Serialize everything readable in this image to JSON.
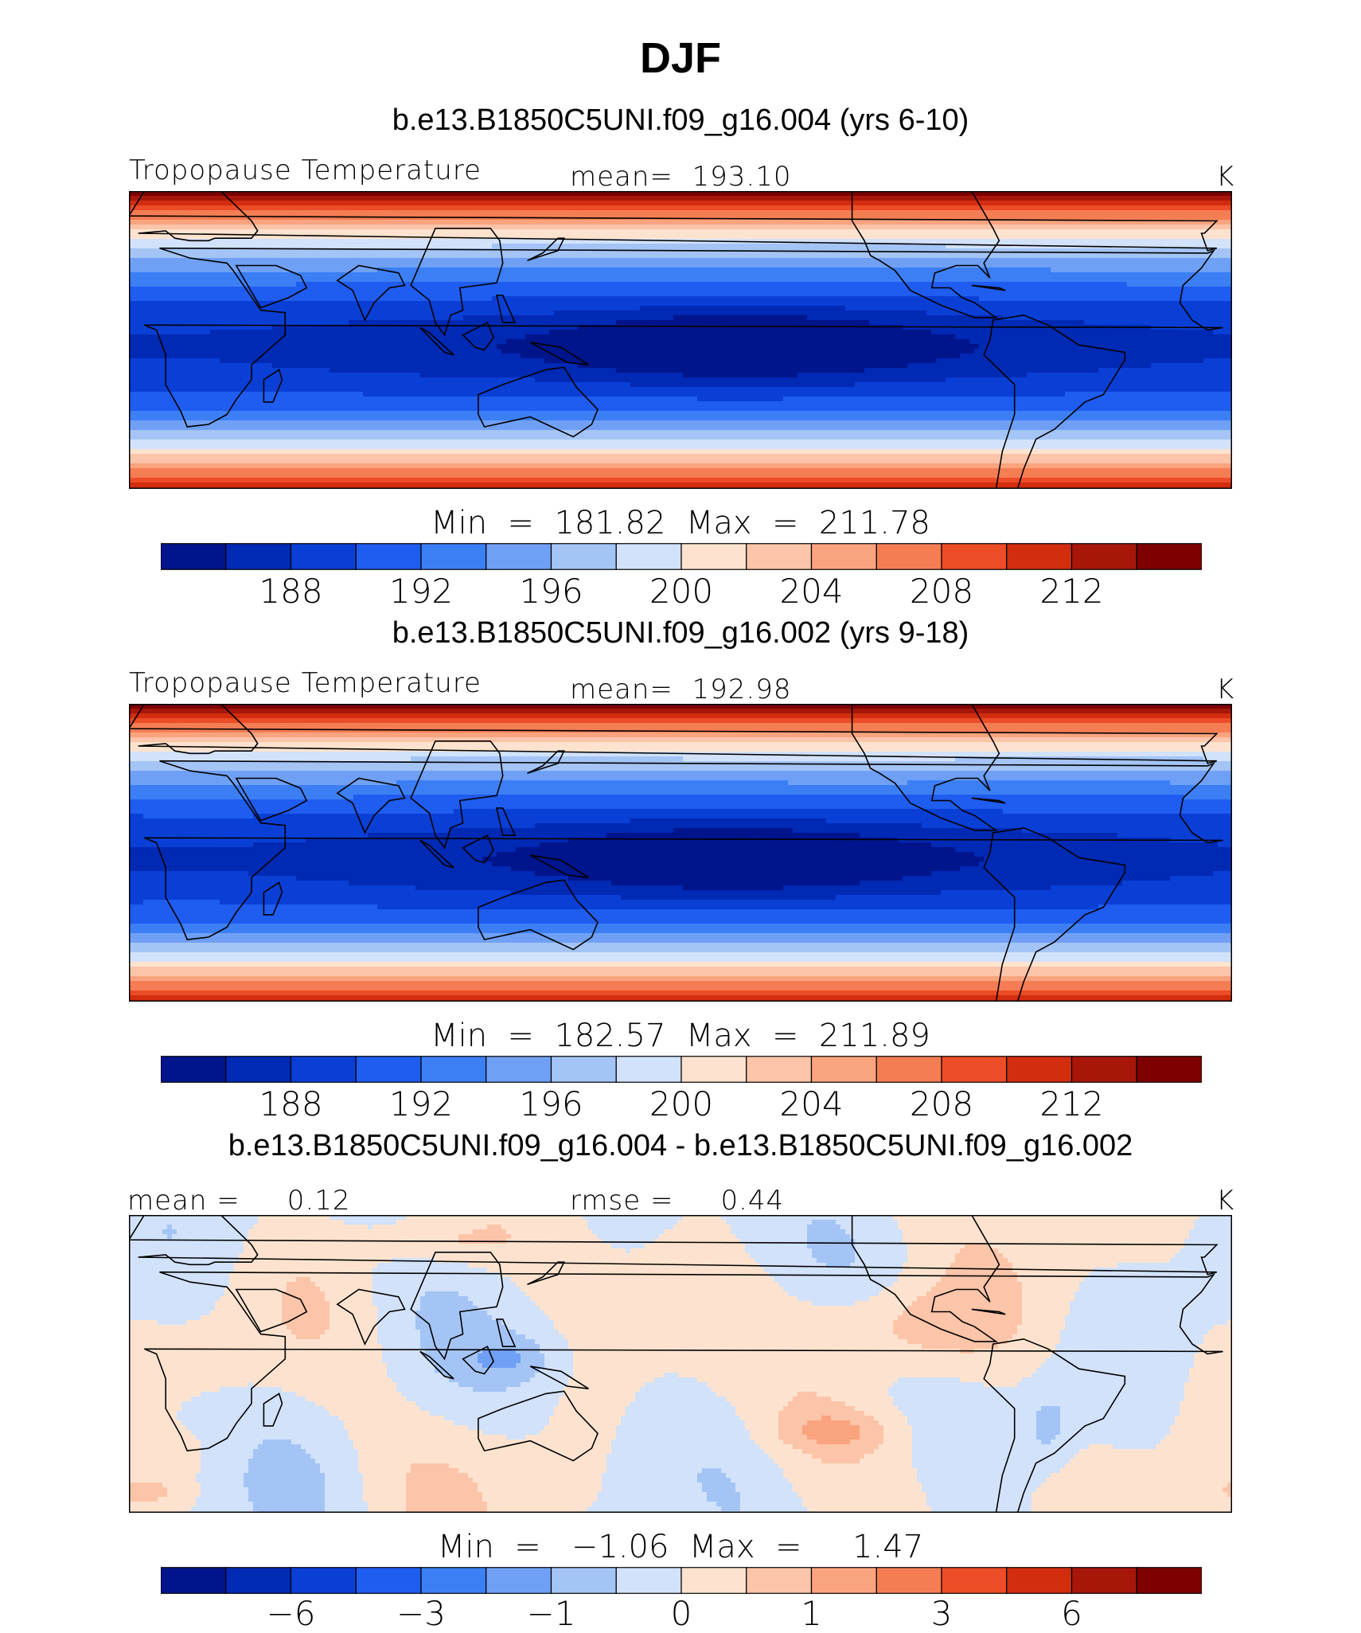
{
  "figure": {
    "season": "DJF",
    "panels": [
      {
        "case_title": "b.e13.B1850C5UNI.f09_g16.004 (yrs 6-10)",
        "variable": "Tropopause Temperature",
        "mean_label": "mean=  193.10",
        "units": "K",
        "stats": "Min  =  181.82  Max  =  211.78",
        "colorbar_ticks": [
          "188",
          "192",
          "196",
          "200",
          "204",
          "208",
          "212"
        ],
        "field": {
          "min": 181.82,
          "max": 211.78,
          "pacific_minimum_lon_span": [
            150,
            260
          ],
          "pacific_minimum_lat_span": [
            -20,
            15
          ]
        }
      },
      {
        "case_title": "b.e13.B1850C5UNI.f09_g16.002 (yrs 9-18)",
        "variable": "Tropopause Temperature",
        "mean_label": "mean=  192.98",
        "units": "K",
        "stats": "Min  =  182.57  Max  =  211.89",
        "colorbar_ticks": [
          "188",
          "192",
          "196",
          "200",
          "204",
          "208",
          "212"
        ],
        "field": {
          "min": 182.57,
          "max": 211.89,
          "pacific_minimum_lon_span": [
            150,
            260
          ],
          "pacific_minimum_lat_span": [
            -20,
            15
          ]
        }
      },
      {
        "case_title": "b.e13.B1850C5UNI.f09_g16.004 - b.e13.B1850C5UNI.f09_g16.002",
        "mean_label": "mean =     0.12",
        "rmse_label": "rmse =     0.44",
        "units": "K",
        "stats": "Min  =   −1.06  Max  =     1.47",
        "colorbar_ticks": [
          "−6",
          "−3",
          "−1",
          "0",
          "1",
          "3",
          "6"
        ],
        "field": {
          "min": -1.06,
          "max": 1.47
        }
      }
    ],
    "colormap": [
      "#00148c",
      "#0029b4",
      "#0a3fd6",
      "#1f5cf0",
      "#3c7ff5",
      "#6fa0f5",
      "#a4c4f6",
      "#d1e2fa",
      "#fde3cf",
      "#fcc4a8",
      "#f9a47f",
      "#f57d54",
      "#ec4c26",
      "#d22d0e",
      "#a6170a",
      "#7e0000"
    ]
  }
}
